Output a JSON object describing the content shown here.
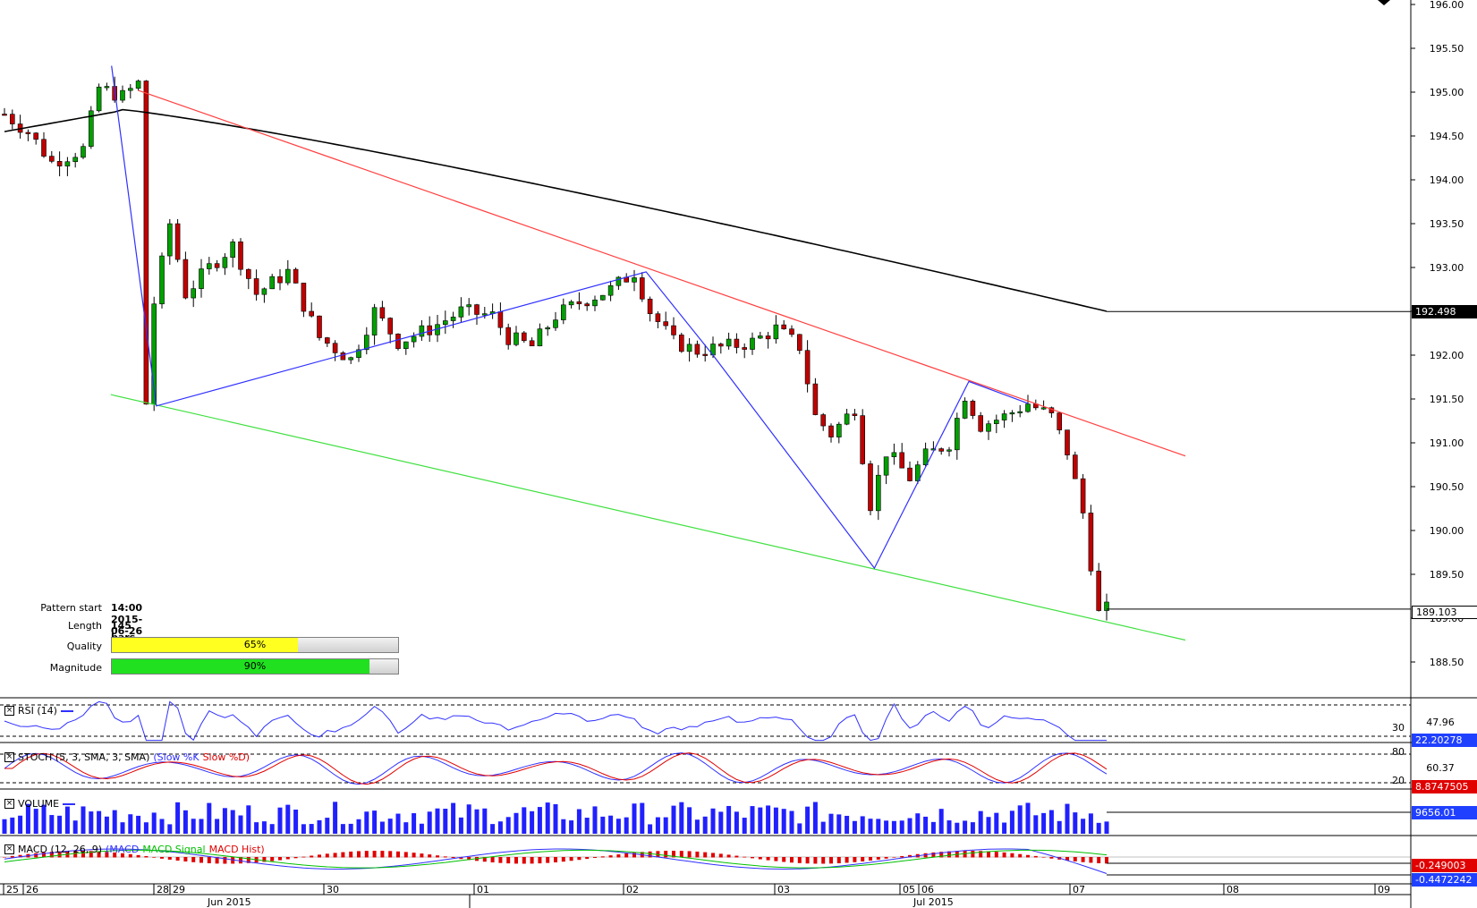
{
  "pattern_info": {
    "start_label": "Pattern start",
    "start_value": "14:00 2015-06-26",
    "length_label": "Length",
    "length_value": "145 bars",
    "quality_label": "Quality",
    "quality_value": "65%",
    "quality_fraction": 0.65,
    "magnitude_label": "Magnitude",
    "magnitude_value": "90%",
    "magnitude_fraction": 0.9
  },
  "panes": {
    "rsi": {
      "title": "RSI (14)",
      "levels": [
        "30"
      ],
      "value": "47.96",
      "current": "22.20278"
    },
    "stoch": {
      "title": "STOCH (5, 3, SMA, 3, SMA)",
      "slow_k": "(Slow %K",
      "slow_d": "Slow %D)",
      "levels": [
        "80",
        "20"
      ],
      "value": "60.37",
      "current": "8.8747505"
    },
    "volume": {
      "title": "VOLUME",
      "current": "9656.01"
    },
    "macd": {
      "title": "MACD (12, 26, 9)",
      "main": "(MACD",
      "signal": "MACD Signal",
      "hist": "MACD Hist)",
      "current_main": "-0.249003",
      "current_signal": "-0.4472242"
    }
  },
  "x_axis": {
    "day_labels": [
      "25",
      "26",
      "28",
      "29",
      "30",
      "01",
      "02",
      "03",
      "05",
      "06",
      "07",
      "08",
      "09"
    ],
    "month_labels": [
      "Jun 2015",
      "Jul 2015"
    ]
  },
  "colors": {
    "bull": "#00a000",
    "bear": "#c00000",
    "sma": "#000000",
    "upper_trend": "#ff4040",
    "lower_trend": "#40e040",
    "pattern": "#3030ff",
    "quality": "#ffff20",
    "magnitude": "#20e020"
  },
  "chart_data": {
    "type": "candlestick",
    "symbol_scale": "price",
    "y_ticks": [
      "196.00",
      "195.50",
      "195.00",
      "194.50",
      "194.00",
      "193.50",
      "193.00",
      "192.50",
      "192.00",
      "191.50",
      "191.00",
      "190.50",
      "190.00",
      "189.50",
      "189.00",
      "188.50"
    ],
    "ylim": [
      188.1,
      196.0
    ],
    "sma_value": "192.498",
    "last_price": "189.103",
    "pattern_points": [
      [
        "2015-06-26 10:00",
        195.3
      ],
      [
        "2015-06-26 14:00",
        191.42
      ],
      [
        "2015-07-02 10:00",
        192.95
      ],
      [
        "2015-07-03 02:00",
        192.0
      ],
      [
        "2015-07-05 22:00",
        189.57
      ],
      [
        "2015-07-06 22:00",
        191.7
      ],
      [
        "2015-07-07 06:00",
        191.45
      ]
    ],
    "upper_trendline": [
      [
        "2015-06-26 12:00",
        195.02
      ],
      [
        "2015-07-08 04:00",
        190.85
      ]
    ],
    "lower_trendline": [
      [
        "2015-06-25 10:00",
        191.55
      ],
      [
        "2015-07-08 04:00",
        188.75
      ]
    ]
  }
}
